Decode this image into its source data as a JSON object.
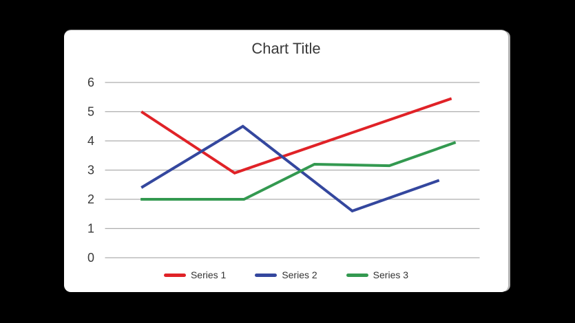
{
  "page": {
    "background_color": "#000000"
  },
  "card": {
    "background_color": "#ffffff"
  },
  "chart_data": {
    "type": "line",
    "title": "Chart Title",
    "xlabel": "",
    "ylabel": "",
    "ylim": [
      0,
      6
    ],
    "yticks": [
      0,
      1,
      2,
      3,
      4,
      5,
      6
    ],
    "xlim": [
      0,
      10
    ],
    "x_axis_labels": "none",
    "grid": "horizontal",
    "gridline_color": "#adadad",
    "text_color": "#3a3a3a",
    "legend_position": "bottom",
    "series": [
      {
        "name": "Series 1",
        "color": "#e02227",
        "points": [
          {
            "x": 0.97,
            "y": 5.0
          },
          {
            "x": 3.46,
            "y": 2.9
          },
          {
            "x": 9.25,
            "y": 5.45
          }
        ]
      },
      {
        "name": "Series 2",
        "color": "#34479e",
        "points": [
          {
            "x": 0.97,
            "y": 2.4
          },
          {
            "x": 3.68,
            "y": 4.5
          },
          {
            "x": 6.6,
            "y": 1.6
          },
          {
            "x": 8.92,
            "y": 2.65
          }
        ]
      },
      {
        "name": "Series 3",
        "color": "#339950",
        "points": [
          {
            "x": 0.95,
            "y": 2.0
          },
          {
            "x": 3.71,
            "y": 2.0
          },
          {
            "x": 5.59,
            "y": 3.2
          },
          {
            "x": 7.59,
            "y": 3.15
          },
          {
            "x": 9.36,
            "y": 3.95
          }
        ]
      }
    ]
  }
}
